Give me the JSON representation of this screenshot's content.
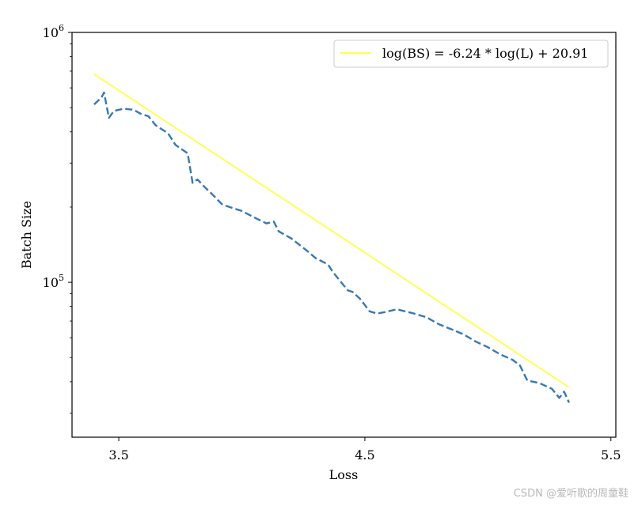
{
  "chart_data": {
    "type": "line",
    "xlabel": "Loss",
    "ylabel": "Batch Size",
    "yscale": "log",
    "xlim": [
      3.31,
      5.52
    ],
    "ylim": [
      24000,
      1000000
    ],
    "x_ticks": [
      {
        "value": 3.5,
        "label": "3.5"
      },
      {
        "value": 4.5,
        "label": "4.5"
      },
      {
        "value": 5.5,
        "label": "5.5"
      }
    ],
    "y_ticks": [
      {
        "value": 100000,
        "base": "10",
        "exp": "5"
      },
      {
        "value": 1000000,
        "base": "10",
        "exp": "6"
      }
    ],
    "legend": {
      "location": "upper right",
      "entries": [
        {
          "label": "log(BS) = -6.24 * log(L) + 20.91",
          "series": "fit"
        }
      ]
    },
    "grid": false,
    "series": [
      {
        "id": "observed",
        "style": "dashed",
        "color": "#3a78b2",
        "points": [
          [
            3.4,
            515000
          ],
          [
            3.43,
            550000
          ],
          [
            3.44,
            575000
          ],
          [
            3.46,
            455000
          ],
          [
            3.48,
            485000
          ],
          [
            3.52,
            495000
          ],
          [
            3.56,
            490000
          ],
          [
            3.59,
            472000
          ],
          [
            3.62,
            462000
          ],
          [
            3.65,
            425000
          ],
          [
            3.7,
            395000
          ],
          [
            3.73,
            355000
          ],
          [
            3.78,
            328000
          ],
          [
            3.8,
            250000
          ],
          [
            3.82,
            258000
          ],
          [
            3.85,
            240000
          ],
          [
            3.88,
            225000
          ],
          [
            3.92,
            205000
          ],
          [
            3.95,
            200000
          ],
          [
            4.0,
            193000
          ],
          [
            4.05,
            182000
          ],
          [
            4.1,
            172000
          ],
          [
            4.13,
            175000
          ],
          [
            4.15,
            160000
          ],
          [
            4.2,
            150000
          ],
          [
            4.26,
            135000
          ],
          [
            4.3,
            125000
          ],
          [
            4.35,
            118000
          ],
          [
            4.37,
            110000
          ],
          [
            4.43,
            93000
          ],
          [
            4.45,
            91500
          ],
          [
            4.48,
            86000
          ],
          [
            4.52,
            76500
          ],
          [
            4.55,
            75000
          ],
          [
            4.58,
            76000
          ],
          [
            4.63,
            78000
          ],
          [
            4.7,
            75000
          ],
          [
            4.75,
            72500
          ],
          [
            4.8,
            68000
          ],
          [
            4.85,
            65000
          ],
          [
            4.9,
            62000
          ],
          [
            4.95,
            58000
          ],
          [
            5.0,
            55000
          ],
          [
            5.05,
            51500
          ],
          [
            5.1,
            49000
          ],
          [
            5.13,
            46500
          ],
          [
            5.16,
            40500
          ],
          [
            5.21,
            39500
          ],
          [
            5.26,
            37500
          ],
          [
            5.29,
            34500
          ],
          [
            5.31,
            36500
          ],
          [
            5.33,
            33000
          ]
        ]
      },
      {
        "id": "fit",
        "style": "solid",
        "color": "#ffff55",
        "name": "log(BS) = -6.24 * log(L) + 20.91",
        "points": [
          [
            3.4,
            680000
          ],
          [
            5.33,
            38000
          ]
        ]
      }
    ]
  },
  "watermark": "CSDN @爱听歌的周童鞋"
}
